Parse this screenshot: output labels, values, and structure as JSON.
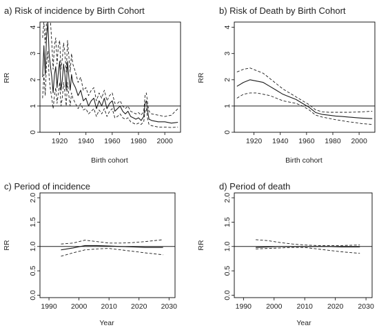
{
  "colors": {
    "line": "#1a1a1a",
    "reference": "#1a1a1a",
    "background": "#ffffff"
  },
  "chart_data": [
    {
      "type": "line",
      "title": "a)  Risk of incidence by Birth Cohort",
      "xlabel": "Birth cohort",
      "ylabel": "RR",
      "xlim": [
        1905,
        2012
      ],
      "ylim": [
        0,
        4.2
      ],
      "x_ticks": [
        1920,
        1940,
        1960,
        1980,
        2000
      ],
      "y_ticks": [
        0,
        1,
        2,
        3,
        4
      ],
      "grid": false,
      "reference_line": 1,
      "series": [
        {
          "style": "solid",
          "x": [
            1907,
            1908,
            1909,
            1910,
            1911,
            1912,
            1913,
            1914,
            1915,
            1916,
            1917,
            1918,
            1919,
            1920,
            1921,
            1922,
            1923,
            1924,
            1925,
            1926,
            1927,
            1928,
            1929,
            1930,
            1932,
            1934,
            1936,
            1938,
            1940,
            1942,
            1944,
            1946,
            1948,
            1950,
            1952,
            1954,
            1956,
            1958,
            1960,
            1962,
            1964,
            1966,
            1968,
            1970,
            1972,
            1974,
            1976,
            1978,
            1980,
            1982,
            1984,
            1985,
            1986,
            1987,
            1988,
            1990,
            1995,
            2000,
            2005,
            2010
          ],
          "y": [
            2.1,
            3.3,
            2.2,
            3.6,
            4.2,
            3.0,
            2.5,
            2.1,
            1.5,
            2.2,
            2.5,
            1.7,
            2.3,
            2.7,
            1.6,
            2.0,
            2.6,
            2.2,
            1.6,
            2.7,
            2.1,
            1.6,
            2.2,
            1.9,
            1.7,
            1.4,
            1.6,
            1.2,
            1.3,
            1.0,
            1.2,
            1.3,
            0.9,
            1.2,
            1.0,
            1.3,
            0.9,
            1.1,
            1.2,
            0.8,
            0.9,
            1.0,
            0.8,
            0.7,
            0.8,
            0.6,
            0.55,
            0.5,
            0.55,
            0.45,
            0.6,
            1.1,
            1.2,
            0.8,
            0.5,
            0.45,
            0.4,
            0.4,
            0.35,
            0.38
          ]
        },
        {
          "style": "dashed",
          "x": [
            1907,
            1908,
            1909,
            1910,
            1911,
            1912,
            1913,
            1914,
            1915,
            1916,
            1917,
            1918,
            1919,
            1920,
            1921,
            1922,
            1923,
            1924,
            1925,
            1926,
            1927,
            1928,
            1929,
            1930,
            1932,
            1934,
            1936,
            1938,
            1940,
            1942,
            1944,
            1946,
            1948,
            1950,
            1952,
            1954,
            1956,
            1958,
            1960,
            1962,
            1964,
            1966,
            1968,
            1970,
            1972,
            1974,
            1976,
            1978,
            1980,
            1982,
            1984,
            1985,
            1986,
            1987,
            1988,
            1990,
            1995,
            2000,
            2005,
            2010
          ],
          "y": [
            3.6,
            4.2,
            3.4,
            4.2,
            4.2,
            4.2,
            4.2,
            3.4,
            2.4,
            3.3,
            3.6,
            2.6,
            3.3,
            3.5,
            2.4,
            2.8,
            3.4,
            3.0,
            2.3,
            3.5,
            2.9,
            2.3,
            3.0,
            2.6,
            2.3,
            1.9,
            2.1,
            1.6,
            1.7,
            1.4,
            1.6,
            1.7,
            1.2,
            1.5,
            1.3,
            1.6,
            1.2,
            1.4,
            1.5,
            1.1,
            1.1,
            1.2,
            1.0,
            0.9,
            1.0,
            0.8,
            0.75,
            0.7,
            0.75,
            0.65,
            0.8,
            1.4,
            1.5,
            1.1,
            0.8,
            0.7,
            0.65,
            0.6,
            0.65,
            0.9
          ]
        },
        {
          "style": "dashed",
          "x": [
            1907,
            1908,
            1909,
            1910,
            1911,
            1912,
            1913,
            1914,
            1915,
            1916,
            1917,
            1918,
            1919,
            1920,
            1921,
            1922,
            1923,
            1924,
            1925,
            1926,
            1927,
            1928,
            1929,
            1930,
            1932,
            1934,
            1936,
            1938,
            1940,
            1942,
            1944,
            1946,
            1948,
            1950,
            1952,
            1954,
            1956,
            1958,
            1960,
            1962,
            1964,
            1966,
            1968,
            1970,
            1972,
            1974,
            1976,
            1978,
            1980,
            1982,
            1984,
            1985,
            1986,
            1987,
            1988,
            1990,
            1995,
            2000,
            2005,
            2010
          ],
          "y": [
            1.3,
            2.2,
            1.4,
            2.6,
            3.1,
            2.1,
            1.6,
            1.3,
            0.9,
            1.4,
            1.7,
            1.1,
            1.5,
            1.9,
            1.0,
            1.3,
            1.9,
            1.5,
            1.0,
            1.9,
            1.4,
            1.0,
            1.5,
            1.3,
            1.1,
            0.9,
            1.1,
            0.85,
            0.9,
            0.7,
            0.8,
            0.9,
            0.6,
            0.85,
            0.7,
            0.9,
            0.6,
            0.8,
            0.9,
            0.55,
            0.6,
            0.7,
            0.55,
            0.5,
            0.55,
            0.4,
            0.35,
            0.3,
            0.35,
            0.3,
            0.4,
            0.8,
            0.9,
            0.5,
            0.3,
            0.25,
            0.2,
            0.2,
            0.18,
            0.2
          ]
        }
      ]
    },
    {
      "type": "line",
      "title": "b)  Risk of Death by Birth Cohort",
      "xlabel": "Birth cohort",
      "ylabel": "RR",
      "xlim": [
        1905,
        2012
      ],
      "ylim": [
        0,
        4.2
      ],
      "x_ticks": [
        1920,
        1940,
        1960,
        1980,
        2000
      ],
      "y_ticks": [
        0,
        1,
        2,
        3,
        4
      ],
      "grid": false,
      "reference_line": 1,
      "series": [
        {
          "style": "solid",
          "x": [
            1907,
            1912,
            1917,
            1922,
            1927,
            1932,
            1937,
            1942,
            1947,
            1952,
            1957,
            1962,
            1967,
            1972,
            1977,
            1982,
            1987,
            1992,
            1997,
            2002,
            2010
          ],
          "y": [
            1.75,
            1.9,
            2.0,
            1.95,
            1.9,
            1.75,
            1.6,
            1.45,
            1.35,
            1.25,
            1.1,
            0.95,
            0.75,
            0.68,
            0.65,
            0.62,
            0.6,
            0.58,
            0.56,
            0.54,
            0.52
          ]
        },
        {
          "style": "dashed",
          "x": [
            1907,
            1912,
            1917,
            1922,
            1927,
            1932,
            1937,
            1942,
            1947,
            1952,
            1957,
            1962,
            1967,
            1972,
            1977,
            1982,
            1987,
            1992,
            1997,
            2002,
            2010
          ],
          "y": [
            2.3,
            2.4,
            2.45,
            2.35,
            2.25,
            2.05,
            1.85,
            1.65,
            1.5,
            1.35,
            1.2,
            1.05,
            0.85,
            0.78,
            0.76,
            0.76,
            0.76,
            0.76,
            0.77,
            0.78,
            0.8
          ]
        },
        {
          "style": "dashed",
          "x": [
            1907,
            1912,
            1917,
            1922,
            1927,
            1932,
            1937,
            1942,
            1947,
            1952,
            1957,
            1962,
            1967,
            1972,
            1977,
            1982,
            1987,
            1992,
            1997,
            2002,
            2010
          ],
          "y": [
            1.3,
            1.45,
            1.5,
            1.5,
            1.45,
            1.4,
            1.3,
            1.2,
            1.15,
            1.1,
            1.0,
            0.85,
            0.65,
            0.58,
            0.53,
            0.48,
            0.44,
            0.4,
            0.37,
            0.33,
            0.3
          ]
        }
      ]
    },
    {
      "type": "line",
      "title": "c)  Period of incidence",
      "xlabel": "Year",
      "ylabel": "RR",
      "xlim": [
        1987,
        2032
      ],
      "ylim": [
        -0.05,
        2.1
      ],
      "x_ticks": [
        1990,
        2000,
        2010,
        2020,
        2030
      ],
      "y_ticks": [
        0.0,
        0.5,
        1.0,
        1.5,
        2.0
      ],
      "grid": false,
      "reference_line": 1.0,
      "series": [
        {
          "style": "solid",
          "x": [
            1994,
            1998,
            2002,
            2006,
            2010,
            2014,
            2018,
            2022,
            2028
          ],
          "y": [
            0.93,
            0.97,
            1.02,
            1.02,
            1.01,
            1.0,
            0.99,
            0.98,
            0.98
          ]
        },
        {
          "style": "dashed",
          "x": [
            1994,
            1998,
            2002,
            2006,
            2010,
            2014,
            2018,
            2022,
            2028
          ],
          "y": [
            1.05,
            1.07,
            1.13,
            1.1,
            1.07,
            1.07,
            1.08,
            1.1,
            1.14
          ]
        },
        {
          "style": "dashed",
          "x": [
            1994,
            1998,
            2002,
            2006,
            2010,
            2014,
            2018,
            2022,
            2028
          ],
          "y": [
            0.8,
            0.87,
            0.93,
            0.95,
            0.96,
            0.93,
            0.9,
            0.87,
            0.83
          ]
        }
      ]
    },
    {
      "type": "line",
      "title": "d)  Period of death",
      "xlabel": "Year",
      "ylabel": "RR",
      "xlim": [
        1987,
        2032
      ],
      "ylim": [
        -0.05,
        2.1
      ],
      "x_ticks": [
        1990,
        2000,
        2010,
        2020,
        2030
      ],
      "y_ticks": [
        0.0,
        0.5,
        1.0,
        1.5,
        2.0
      ],
      "grid": false,
      "reference_line": 1.0,
      "series": [
        {
          "style": "solid",
          "x": [
            1994,
            1998,
            2002,
            2006,
            2010,
            2014,
            2018,
            2022,
            2028
          ],
          "y": [
            0.98,
            0.99,
            1.0,
            1.0,
            1.0,
            1.0,
            1.0,
            0.99,
            0.99
          ]
        },
        {
          "style": "dashed",
          "x": [
            1994,
            1998,
            2002,
            2006,
            2010,
            2014,
            2018,
            2022,
            2028
          ],
          "y": [
            1.14,
            1.12,
            1.08,
            1.05,
            1.03,
            1.02,
            1.02,
            1.02,
            1.03
          ]
        },
        {
          "style": "dashed",
          "x": [
            1994,
            1998,
            2002,
            2006,
            2010,
            2014,
            2018,
            2022,
            2028
          ],
          "y": [
            0.95,
            0.96,
            0.97,
            0.98,
            0.98,
            0.95,
            0.92,
            0.89,
            0.86
          ]
        }
      ]
    }
  ]
}
